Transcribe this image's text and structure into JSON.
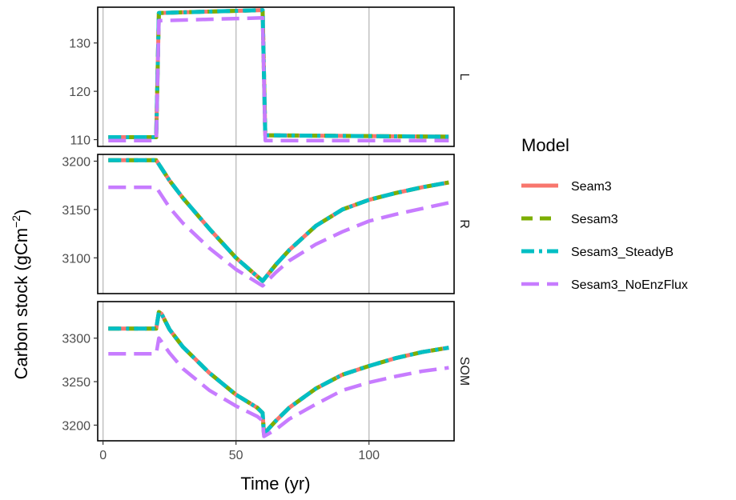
{
  "chart_data": {
    "type": "line",
    "xlabel": "Time (yr)",
    "ylabel_main": "Carbon stock (gCm",
    "ylabel_sup": "−2",
    "ylabel_close": ")",
    "xlim": [
      -2,
      132
    ],
    "x_ticks": [
      0,
      50,
      100
    ],
    "gridlines_x": true,
    "legend": {
      "title": "Model",
      "position": "right"
    },
    "series": [
      {
        "name": "Seam3",
        "color": "#F8766D",
        "dash": "solid"
      },
      {
        "name": "Sesam3",
        "color": "#7CAE00",
        "dash": "dashed"
      },
      {
        "name": "Sesam3_SteadyB",
        "color": "#00BFC4",
        "dash": "dotdash"
      },
      {
        "name": "Sesam3_NoEnzFlux",
        "color": "#C77CFF",
        "dash": "longdash"
      }
    ],
    "panels": [
      {
        "strip": "L",
        "ylim": [
          108.6,
          137.4
        ],
        "y_ticks": [
          110,
          120,
          130
        ],
        "lines": {
          "Seam3": [
            [
              2,
              110.5
            ],
            [
              20,
              110.5
            ],
            [
              21,
              136.2
            ],
            [
              40,
              136.5
            ],
            [
              60,
              136.8
            ],
            [
              61,
              110.9
            ],
            [
              130,
              110.6
            ]
          ],
          "Sesam3": [
            [
              2,
              110.5
            ],
            [
              20,
              110.5
            ],
            [
              21,
              136.2
            ],
            [
              40,
              136.5
            ],
            [
              60,
              136.8
            ],
            [
              61,
              110.9
            ],
            [
              130,
              110.6
            ]
          ],
          "Sesam3_SteadyB": [
            [
              2,
              110.5
            ],
            [
              20,
              110.5
            ],
            [
              21,
              136.2
            ],
            [
              40,
              136.5
            ],
            [
              60,
              136.8
            ],
            [
              61,
              110.9
            ],
            [
              130,
              110.6
            ]
          ],
          "Sesam3_NoEnzFlux": [
            [
              2,
              109.8
            ],
            [
              20,
              109.8
            ],
            [
              21,
              134.6
            ],
            [
              40,
              134.9
            ],
            [
              60,
              135.2
            ],
            [
              61,
              109.8
            ],
            [
              130,
              109.8
            ]
          ]
        }
      },
      {
        "strip": "R",
        "ylim": [
          3063,
          3207
        ],
        "y_ticks": [
          3100,
          3150,
          3200
        ],
        "lines": {
          "Seam3": [
            [
              2,
              3201
            ],
            [
              20,
              3201
            ],
            [
              25,
              3180
            ],
            [
              30,
              3162
            ],
            [
              40,
              3130
            ],
            [
              50,
              3100
            ],
            [
              60,
              3076
            ],
            [
              65,
              3093
            ],
            [
              70,
              3108
            ],
            [
              80,
              3133
            ],
            [
              90,
              3150
            ],
            [
              100,
              3160
            ],
            [
              110,
              3167
            ],
            [
              120,
              3173
            ],
            [
              130,
              3178
            ]
          ],
          "Sesam3": [
            [
              2,
              3201
            ],
            [
              20,
              3201
            ],
            [
              25,
              3180
            ],
            [
              30,
              3162
            ],
            [
              40,
              3130
            ],
            [
              50,
              3100
            ],
            [
              60,
              3076
            ],
            [
              65,
              3093
            ],
            [
              70,
              3108
            ],
            [
              80,
              3133
            ],
            [
              90,
              3150
            ],
            [
              100,
              3160
            ],
            [
              110,
              3167
            ],
            [
              120,
              3173
            ],
            [
              130,
              3178
            ]
          ],
          "Sesam3_SteadyB": [
            [
              2,
              3201
            ],
            [
              20,
              3201
            ],
            [
              25,
              3180
            ],
            [
              30,
              3162
            ],
            [
              40,
              3130
            ],
            [
              50,
              3100
            ],
            [
              60,
              3076
            ],
            [
              65,
              3093
            ],
            [
              70,
              3108
            ],
            [
              80,
              3133
            ],
            [
              90,
              3150
            ],
            [
              100,
              3160
            ],
            [
              110,
              3167
            ],
            [
              120,
              3173
            ],
            [
              130,
              3178
            ]
          ],
          "Sesam3_NoEnzFlux": [
            [
              2,
              3173
            ],
            [
              20,
              3173
            ],
            [
              25,
              3152
            ],
            [
              30,
              3136
            ],
            [
              40,
              3110
            ],
            [
              50,
              3088
            ],
            [
              60,
              3071
            ],
            [
              65,
              3085
            ],
            [
              70,
              3097
            ],
            [
              80,
              3114
            ],
            [
              90,
              3127
            ],
            [
              100,
              3138
            ],
            [
              110,
              3145
            ],
            [
              120,
              3151
            ],
            [
              130,
              3157
            ]
          ]
        }
      },
      {
        "strip": "SOM",
        "ylim": [
          3182,
          3342
        ],
        "y_ticks": [
          3200,
          3250,
          3300
        ],
        "lines": {
          "Seam3": [
            [
              2,
              3311
            ],
            [
              20,
              3311
            ],
            [
              21,
              3330
            ],
            [
              22,
              3328
            ],
            [
              25,
              3310
            ],
            [
              30,
              3290
            ],
            [
              40,
              3260
            ],
            [
              50,
              3235
            ],
            [
              58,
              3220
            ],
            [
              60,
              3214
            ],
            [
              60.5,
              3190
            ],
            [
              65,
              3205
            ],
            [
              70,
              3220
            ],
            [
              80,
              3242
            ],
            [
              90,
              3258
            ],
            [
              100,
              3268
            ],
            [
              110,
              3277
            ],
            [
              120,
              3284
            ],
            [
              130,
              3289
            ]
          ],
          "Sesam3": [
            [
              2,
              3311
            ],
            [
              20,
              3311
            ],
            [
              21,
              3330
            ],
            [
              22,
              3328
            ],
            [
              25,
              3310
            ],
            [
              30,
              3290
            ],
            [
              40,
              3260
            ],
            [
              50,
              3235
            ],
            [
              58,
              3220
            ],
            [
              60,
              3214
            ],
            [
              60.5,
              3190
            ],
            [
              65,
              3205
            ],
            [
              70,
              3220
            ],
            [
              80,
              3242
            ],
            [
              90,
              3258
            ],
            [
              100,
              3268
            ],
            [
              110,
              3277
            ],
            [
              120,
              3284
            ],
            [
              130,
              3289
            ]
          ],
          "Sesam3_SteadyB": [
            [
              2,
              3311
            ],
            [
              20,
              3311
            ],
            [
              21,
              3330
            ],
            [
              22,
              3328
            ],
            [
              25,
              3310
            ],
            [
              30,
              3290
            ],
            [
              40,
              3260
            ],
            [
              50,
              3235
            ],
            [
              58,
              3220
            ],
            [
              60,
              3214
            ],
            [
              60.5,
              3190
            ],
            [
              65,
              3205
            ],
            [
              70,
              3220
            ],
            [
              80,
              3242
            ],
            [
              90,
              3258
            ],
            [
              100,
              3268
            ],
            [
              110,
              3277
            ],
            [
              120,
              3284
            ],
            [
              130,
              3289
            ]
          ],
          "Sesam3_NoEnzFlux": [
            [
              2,
              3282
            ],
            [
              20,
              3282
            ],
            [
              21,
              3300
            ],
            [
              22,
              3296
            ],
            [
              25,
              3283
            ],
            [
              30,
              3265
            ],
            [
              40,
              3240
            ],
            [
              50,
              3222
            ],
            [
              58,
              3210
            ],
            [
              60,
              3205
            ],
            [
              60.5,
              3187
            ],
            [
              65,
              3195
            ],
            [
              70,
              3207
            ],
            [
              80,
              3224
            ],
            [
              90,
              3240
            ],
            [
              100,
              3249
            ],
            [
              110,
              3256
            ],
            [
              120,
              3262
            ],
            [
              130,
              3266
            ]
          ]
        }
      }
    ]
  }
}
